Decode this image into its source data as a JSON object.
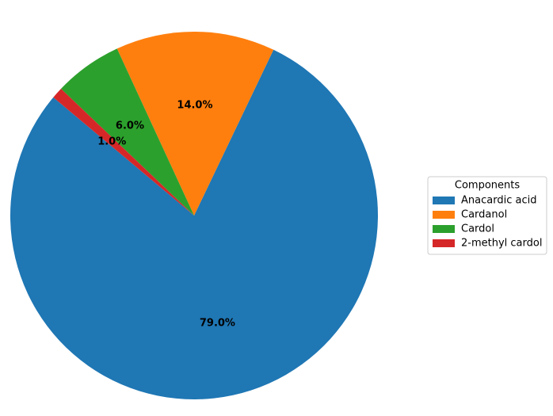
{
  "chart_data": {
    "type": "pie",
    "categories": [
      "Anacardic acid",
      "Cardanol",
      "Cardol",
      "2-methyl cardol"
    ],
    "values": [
      79,
      14,
      6,
      1
    ],
    "value_labels": [
      "79.0%",
      "14.0%",
      "6.0%",
      "1.0%"
    ],
    "colors": [
      "#1f77b4",
      "#ff7f0e",
      "#2ca02c",
      "#d62728"
    ],
    "start_angle": 140,
    "legend_title": "Components",
    "legend": "right"
  }
}
